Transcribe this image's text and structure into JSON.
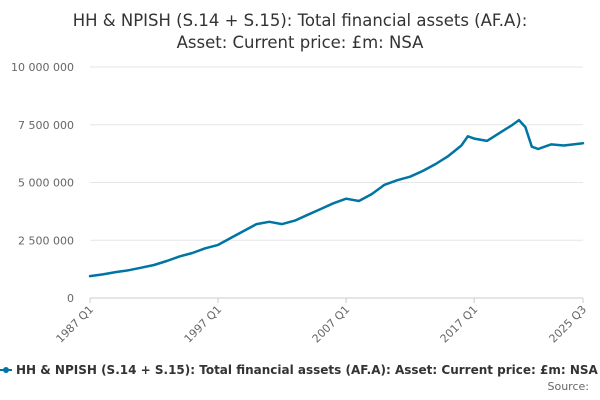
{
  "chart_data": {
    "type": "line",
    "title_lines": [
      "HH & NPISH (S.14 + S.15): Total financial assets (AF.A):",
      "Asset: Current price: £m: NSA"
    ],
    "x_tick_labels": [
      "1987 Q1",
      "1997 Q1",
      "2007 Q1",
      "2017 Q1",
      "2025 Q3"
    ],
    "y_tick_labels": [
      "0",
      "2 500 000",
      "5 000 000",
      "7 500 000",
      "10 000 000"
    ],
    "y_ticks": [
      0,
      2500000,
      5000000,
      7500000,
      10000000
    ],
    "ylim": [
      0,
      10000000
    ],
    "grid": true,
    "legend_position": "bottom",
    "source_label": "Source:",
    "color": "#0075a3",
    "series": [
      {
        "name": "HH & NPISH (S.14 + S.15): Total financial assets (AF.A): Asset: Current price: £m: NSA",
        "points": [
          [
            "1987 Q1",
            950000
          ],
          [
            "1988 Q1",
            1020000
          ],
          [
            "1989 Q1",
            1120000
          ],
          [
            "1990 Q1",
            1200000
          ],
          [
            "1991 Q1",
            1310000
          ],
          [
            "1992 Q1",
            1430000
          ],
          [
            "1993 Q1",
            1600000
          ],
          [
            "1994 Q1",
            1800000
          ],
          [
            "1995 Q1",
            1950000
          ],
          [
            "1996 Q1",
            2150000
          ],
          [
            "1997 Q1",
            2300000
          ],
          [
            "1998 Q1",
            2600000
          ],
          [
            "1999 Q1",
            2900000
          ],
          [
            "2000 Q1",
            3200000
          ],
          [
            "2001 Q1",
            3300000
          ],
          [
            "2002 Q1",
            3200000
          ],
          [
            "2003 Q1",
            3350000
          ],
          [
            "2004 Q1",
            3600000
          ],
          [
            "2005 Q1",
            3850000
          ],
          [
            "2006 Q1",
            4100000
          ],
          [
            "2007 Q1",
            4300000
          ],
          [
            "2008 Q1",
            4200000
          ],
          [
            "2009 Q1",
            4500000
          ],
          [
            "2010 Q1",
            4900000
          ],
          [
            "2011 Q1",
            5100000
          ],
          [
            "2012 Q1",
            5250000
          ],
          [
            "2013 Q1",
            5500000
          ],
          [
            "2014 Q1",
            5800000
          ],
          [
            "2015 Q1",
            6150000
          ],
          [
            "2016 Q1",
            6600000
          ],
          [
            "2016 Q3",
            7000000
          ],
          [
            "2017 Q1",
            6900000
          ],
          [
            "2018 Q1",
            6800000
          ],
          [
            "2019 Q1",
            7150000
          ],
          [
            "2020 Q1",
            7500000
          ],
          [
            "2020 Q3",
            7700000
          ],
          [
            "2021 Q1",
            7400000
          ],
          [
            "2021 Q3",
            6550000
          ],
          [
            "2022 Q1",
            6450000
          ],
          [
            "2022 Q3",
            6550000
          ],
          [
            "2023 Q1",
            6650000
          ],
          [
            "2024 Q1",
            6600000
          ],
          [
            "2025 Q3",
            6700000
          ]
        ]
      }
    ]
  }
}
